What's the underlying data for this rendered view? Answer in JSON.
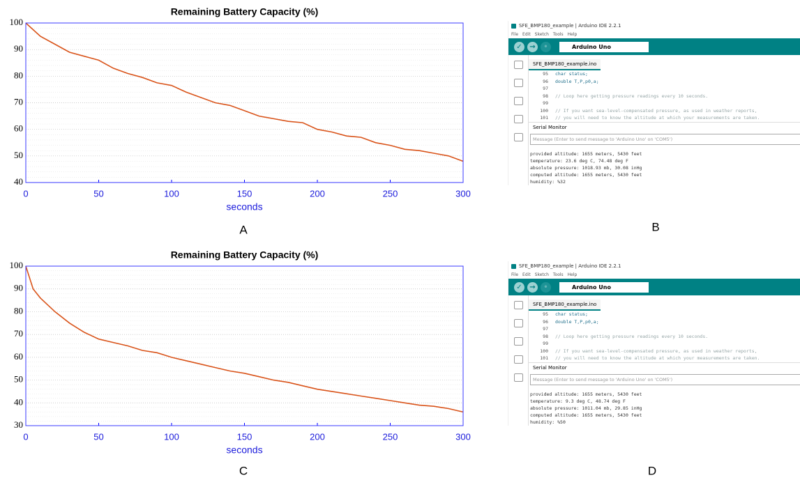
{
  "chart_data": [
    {
      "type": "line",
      "title": "Remaining Battery Capacity (%)",
      "xlabel": "seconds",
      "x": [
        0,
        10,
        20,
        30,
        40,
        50,
        60,
        70,
        80,
        90,
        100,
        110,
        120,
        130,
        140,
        150,
        160,
        170,
        180,
        190,
        200,
        210,
        220,
        230,
        240,
        250,
        260,
        270,
        280,
        290,
        300
      ],
      "series": [
        {
          "color": "#d95319",
          "values": [
            100,
            95,
            92,
            89,
            87.5,
            86,
            83,
            81,
            79.5,
            77.5,
            76.5,
            74,
            72,
            70,
            69,
            67,
            65,
            64,
            63,
            62.5,
            60,
            59,
            57.5,
            57,
            55,
            54,
            52.5,
            52,
            51,
            50,
            48
          ]
        }
      ],
      "xlim": [
        0,
        300
      ],
      "xticks": [
        0,
        50,
        100,
        150,
        200,
        250,
        300
      ],
      "ylim": [
        40,
        100
      ],
      "yticks": [
        40,
        50,
        60,
        70,
        80,
        90,
        100
      ],
      "grid": true
    },
    {
      "type": "line",
      "title": "Remaining Battery Capacity (%)",
      "xlabel": "seconds",
      "x": [
        0,
        5,
        10,
        20,
        30,
        40,
        50,
        60,
        70,
        80,
        90,
        100,
        110,
        120,
        130,
        140,
        150,
        160,
        170,
        180,
        190,
        200,
        210,
        220,
        230,
        240,
        250,
        260,
        270,
        280,
        290,
        300
      ],
      "series": [
        {
          "color": "#d95319",
          "values": [
            100,
            90,
            86,
            80,
            75,
            71,
            68,
            66.5,
            65,
            63,
            62,
            60,
            58.5,
            57,
            55.5,
            54,
            53,
            51.5,
            50,
            49,
            47.5,
            46,
            45,
            44,
            43,
            42,
            41,
            40,
            39,
            38.5,
            37.5,
            36
          ]
        }
      ],
      "xlim": [
        0,
        300
      ],
      "xticks": [
        0,
        50,
        100,
        150,
        200,
        250,
        300
      ],
      "ylim": [
        30,
        100
      ],
      "yticks": [
        30,
        40,
        50,
        60,
        70,
        80,
        90,
        100
      ],
      "grid": true
    }
  ],
  "panel_labels": [
    "A",
    "B",
    "C",
    "D"
  ],
  "screenshots": [
    {
      "title": "SFE_BMP180_example | Arduino IDE 2.2.1",
      "menu": [
        "File",
        "Edit",
        "Sketch",
        "Tools",
        "Help"
      ],
      "board": "Arduino Uno",
      "tab": "SFE_BMP180_example.ino",
      "code": [
        {
          "line": "95",
          "text": "char status;"
        },
        {
          "line": "96",
          "text": "double T,P,p0,a;"
        },
        {
          "line": "97"
        },
        {
          "line": "98",
          "text": "// Loop here getting pressure readings every 10 seconds."
        },
        {
          "line": "99"
        },
        {
          "line": "100",
          "text": "// If you want sea-level-compensated pressure, as used in weather reports,"
        },
        {
          "line": "101",
          "text": "// you will need to know the altitude at which your measurements are taken."
        }
      ],
      "serial_title": "Serial Monitor",
      "placeholder": "Message (Enter to send message to 'Arduino Uno' on 'COM5')",
      "output": [
        "provided altitude: 1655 meters, 5430 feet",
        "temperature:  23.6  deg C,  74.48  deg F",
        "absolute pressure: 1018.93 mb, 30.08 inHg",
        "computed altitude: 1655 meters, 5430 feet",
        "humidity: %32"
      ]
    },
    {
      "title": "SFE_BMP180_example | Arduino IDE 2.2.1",
      "menu": [
        "File",
        "Edit",
        "Sketch",
        "Tools",
        "Help"
      ],
      "board": "Arduino Uno",
      "tab": "SFE_BMP180_example.ino",
      "code": [
        {
          "line": "95",
          "text": "char status;"
        },
        {
          "line": "96",
          "text": "double T,P,p0,a;"
        },
        {
          "line": "97"
        },
        {
          "line": "98",
          "text": "// Loop here getting pressure readings every 10 seconds."
        },
        {
          "line": "99"
        },
        {
          "line": "100",
          "text": "// If you want sea-level-compensated pressure, as used in weather reports,"
        },
        {
          "line": "101",
          "text": "// you will need to know the altitude at which your measurements are taken."
        }
      ],
      "serial_title": "Serial Monitor",
      "placeholder": "Message (Enter to send message to 'Arduino Uno' on 'COM5')",
      "output": [
        "provided altitude: 1655 meters, 5430 feet",
        "temperature:  9.3  deg C,  48.74  deg F",
        "absolute pressure: 1011.04 mb, 29.85 inHg",
        "computed altitude: 1655 meters, 5430 feet",
        "humidity: %50"
      ]
    }
  ]
}
